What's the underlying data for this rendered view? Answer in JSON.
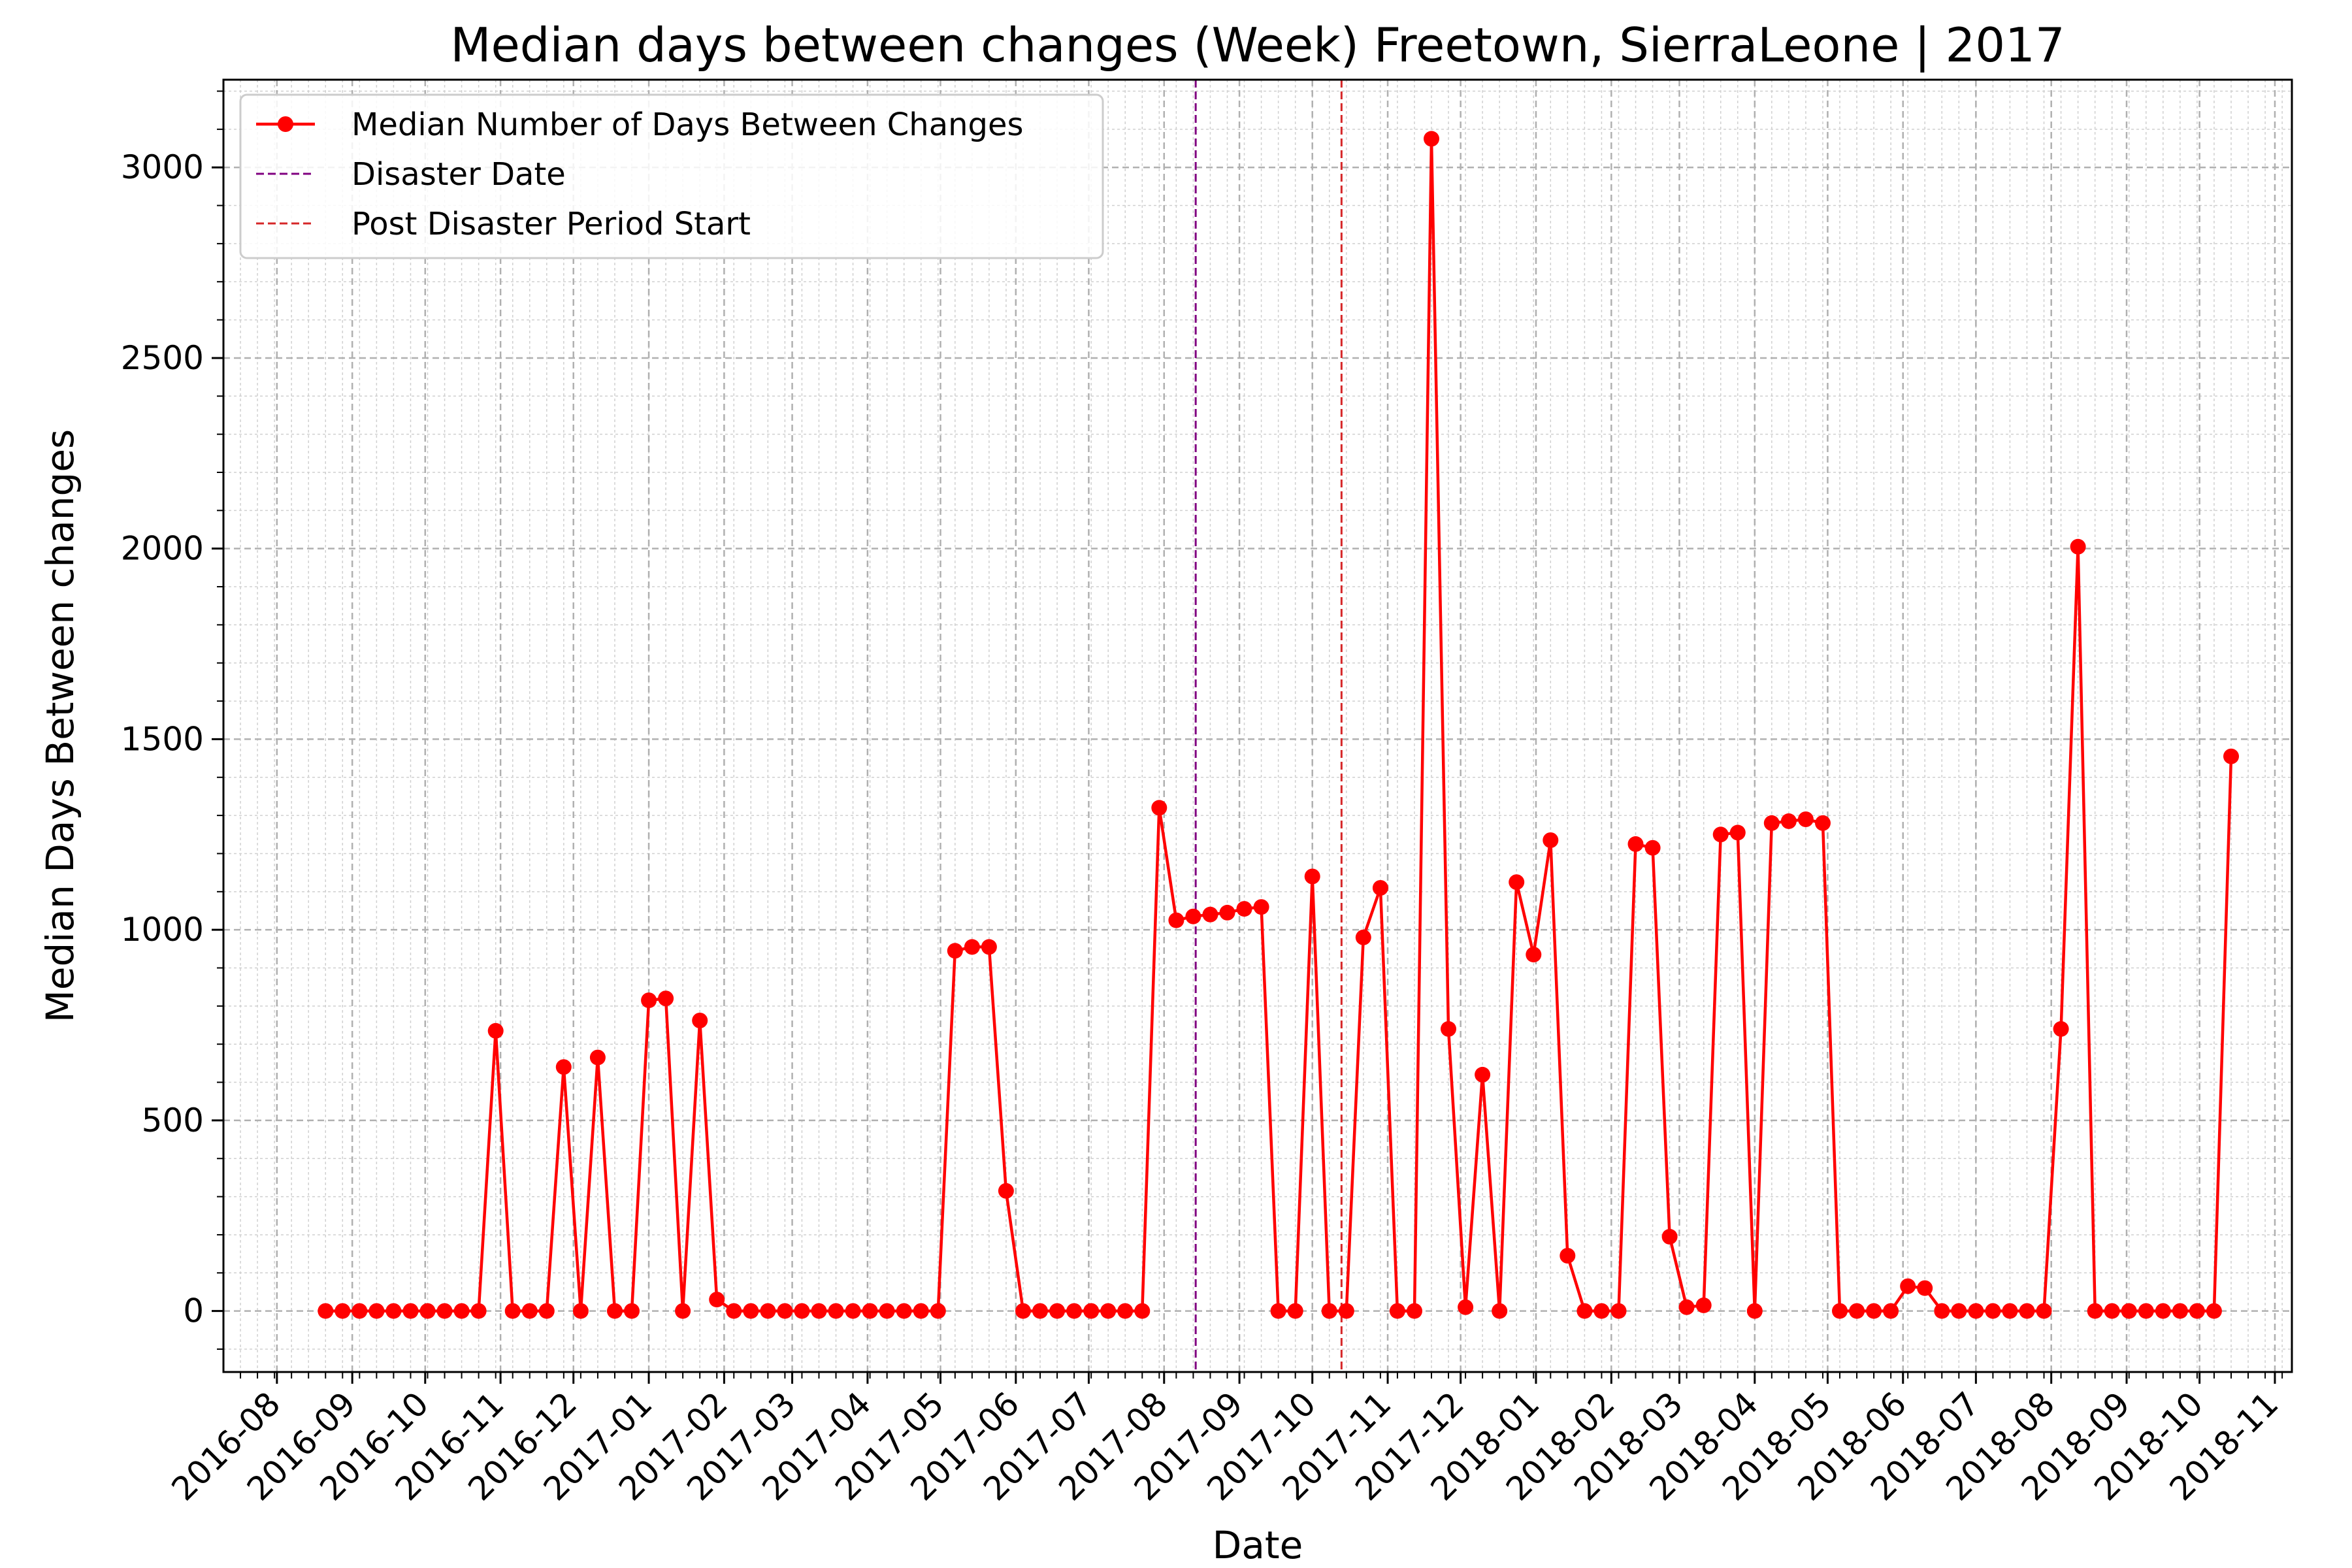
{
  "chart_data": {
    "type": "line",
    "title": "Median days between changes (Week) Freetown, SierraLeone | 2017",
    "xlabel": "Date",
    "ylabel": "Median Days Between changes",
    "ylim": [
      -160,
      3230
    ],
    "xlim": [
      "2016-07-10",
      "2018-11-08"
    ],
    "yticks": [
      0,
      500,
      1000,
      1500,
      2000,
      2500,
      3000
    ],
    "xticks": [
      "2016-08",
      "2016-09",
      "2016-10",
      "2016-11",
      "2016-12",
      "2017-01",
      "2017-02",
      "2017-03",
      "2017-04",
      "2017-05",
      "2017-06",
      "2017-07",
      "2017-08",
      "2017-09",
      "2017-10",
      "2017-11",
      "2017-12",
      "2018-01",
      "2018-02",
      "2018-03",
      "2018-04",
      "2018-05",
      "2018-06",
      "2018-07",
      "2018-08",
      "2018-09",
      "2018-10",
      "2018-11"
    ],
    "grid": true,
    "legend_position": "top-left",
    "series": [
      {
        "name": "Median Number of Days Between Changes",
        "color": "#ff0000",
        "marker": "circle",
        "x_start": "2016-08-21",
        "x_step_days": 7,
        "values": [
          0,
          0,
          0,
          0,
          0,
          0,
          0,
          0,
          0,
          0,
          735,
          0,
          0,
          0,
          640,
          0,
          665,
          0,
          0,
          815,
          820,
          0,
          762,
          30,
          0,
          0,
          0,
          0,
          0,
          0,
          0,
          0,
          0,
          0,
          0,
          0,
          0,
          945,
          955,
          955,
          315,
          0,
          0,
          0,
          0,
          0,
          0,
          0,
          0,
          1320,
          1025,
          1035,
          1040,
          1045,
          1055,
          1060,
          0,
          0,
          1140,
          0,
          0,
          980,
          1110,
          0,
          0,
          3075,
          740,
          10,
          620,
          0,
          1125,
          935,
          1235,
          145,
          0,
          0,
          0,
          1225,
          1215,
          195,
          10,
          15,
          1250,
          1255,
          0,
          1280,
          1285,
          1290,
          1280,
          0,
          0,
          0,
          0,
          65,
          60,
          0,
          0,
          0,
          0,
          0,
          0,
          0,
          740,
          2005,
          0,
          0,
          0,
          0,
          0,
          0,
          0,
          0,
          1455
        ]
      }
    ],
    "vlines": [
      {
        "name": "Disaster Date",
        "date": "2017-08-14",
        "color": "#800080"
      },
      {
        "name": "Post Disaster Period Start",
        "date": "2017-10-13",
        "color": "#d62728"
      }
    ]
  }
}
